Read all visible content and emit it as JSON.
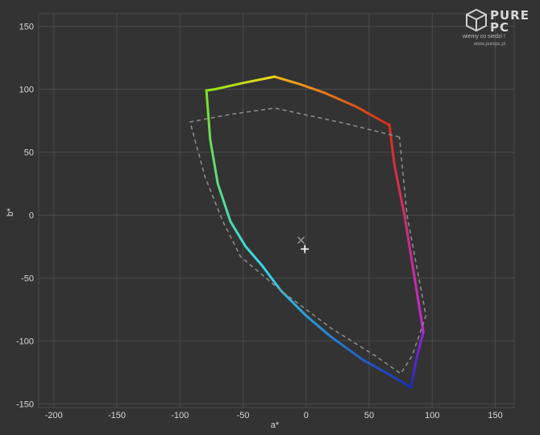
{
  "chart_data": {
    "type": "line",
    "title": "",
    "xlabel": "a*",
    "ylabel": "b*",
    "xlim": [
      -212,
      165
    ],
    "ylim": [
      -153,
      160
    ],
    "x_ticks": [
      "-200",
      "-150",
      "-100",
      "-50",
      "0",
      "50",
      "100",
      "150"
    ],
    "y_ticks": [
      "150",
      "100",
      "50",
      "0",
      "-50",
      "-100",
      "-150"
    ],
    "grid": true,
    "legend": "none",
    "series": [
      {
        "style": "solid-spectrum",
        "segments": [
          {
            "from": "red",
            "to": "orange-yellow",
            "color_start": "#d12a1a",
            "color_end": "#f2b51a",
            "points": [
              [
                65,
                72
              ],
              [
                40,
                86
              ],
              [
                15,
                97
              ],
              [
                -5,
                104
              ],
              [
                -25,
                110
              ]
            ]
          },
          {
            "from": "yellow",
            "to": "green",
            "color_start": "#f2d81a",
            "color_end": "#8ee21a",
            "points": [
              [
                -25,
                110
              ],
              [
                -50,
                105
              ],
              [
                -72,
                100
              ],
              [
                -79,
                99
              ]
            ]
          },
          {
            "from": "green",
            "to": "cyan",
            "color_start": "#7ee022",
            "color_end": "#36d8e8",
            "points": [
              [
                -79,
                99
              ],
              [
                -76,
                60
              ],
              [
                -70,
                25
              ],
              [
                -60,
                -5
              ],
              [
                -48,
                -25
              ],
              [
                -35,
                -40
              ]
            ]
          },
          {
            "from": "cyan",
            "to": "blue",
            "color_start": "#36d8e8",
            "color_end": "#1a2eb8",
            "points": [
              [
                -35,
                -40
              ],
              [
                -20,
                -60
              ],
              [
                0,
                -80
              ],
              [
                20,
                -97
              ],
              [
                45,
                -115
              ],
              [
                70,
                -129
              ],
              [
                83,
                -137
              ]
            ]
          },
          {
            "from": "blue",
            "to": "violet",
            "color_start": "#1a2eb8",
            "color_end": "#9a22e0",
            "points": [
              [
                83,
                -137
              ],
              [
                88,
                -112
              ],
              [
                93,
                -93
              ]
            ]
          },
          {
            "from": "magenta",
            "to": "red",
            "color_start": "#c02ad8",
            "color_end": "#e0301a",
            "points": [
              [
                93,
                -93
              ],
              [
                86,
                -50
              ],
              [
                78,
                0
              ],
              [
                70,
                40
              ],
              [
                66,
                72
              ]
            ]
          }
        ]
      },
      {
        "style": "dashed-reference",
        "color": "#8a8a8a",
        "points": [
          [
            74,
            62
          ],
          [
            30,
            73
          ],
          [
            -25,
            85
          ],
          [
            -60,
            80
          ],
          [
            -92,
            74
          ],
          [
            -80,
            30
          ],
          [
            -66,
            -5
          ],
          [
            -52,
            -33
          ],
          [
            -20,
            -60
          ],
          [
            20,
            -90
          ],
          [
            55,
            -112
          ],
          [
            75,
            -126
          ],
          [
            84,
            -112
          ],
          [
            95,
            -80
          ],
          [
            80,
            0
          ],
          [
            74,
            62
          ]
        ]
      }
    ],
    "markers": [
      {
        "symbol": "x",
        "x": -4,
        "y": -20,
        "color": "#9a9a9a"
      },
      {
        "symbol": "+",
        "x": -1,
        "y": -27,
        "color": "#ffffff"
      }
    ]
  },
  "logo": {
    "brand": "PURE PC",
    "tagline": "wiemy co siedzi !",
    "site": "www.purepc.pl"
  }
}
